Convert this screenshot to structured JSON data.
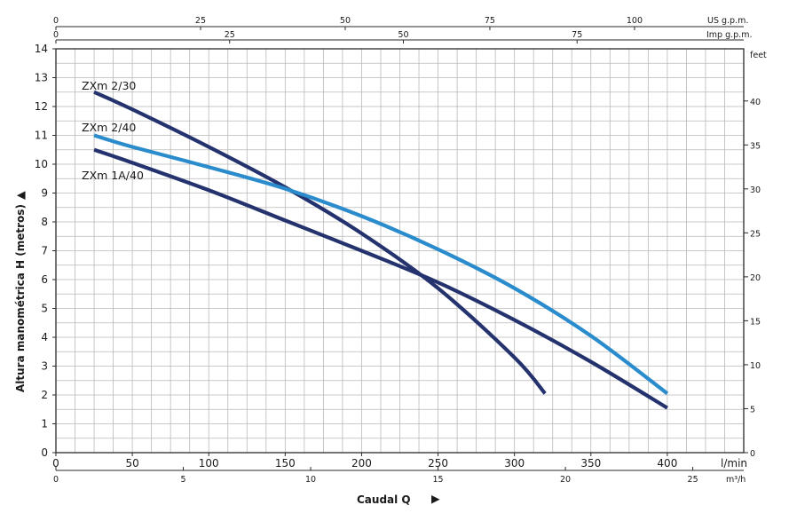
{
  "chart_data": {
    "type": "line",
    "xlabel": "Caudal Q",
    "ylabel": "Altura manométrica H (metros)",
    "xlim": [
      0,
      450
    ],
    "ylim": [
      0,
      14
    ],
    "x_unit": "l/min",
    "x_ticks": [
      0,
      50,
      100,
      150,
      200,
      250,
      300,
      350,
      400
    ],
    "y_ticks": [
      0,
      1,
      2,
      3,
      4,
      5,
      6,
      7,
      8,
      9,
      10,
      11,
      12,
      13,
      14
    ],
    "grid": true,
    "secondary_axes": {
      "bottom": {
        "unit": "m³/h",
        "ticks": [
          0,
          5,
          10,
          15,
          20,
          25
        ]
      },
      "top_us": {
        "unit": "US g.p.m.",
        "ticks": [
          0,
          25,
          50,
          75,
          100
        ]
      },
      "top_imp": {
        "unit": "Imp g.p.m.",
        "ticks": [
          0,
          25,
          50,
          75
        ]
      },
      "right": {
        "unit": "feet",
        "ticks": [
          0,
          5,
          10,
          15,
          20,
          25,
          30,
          35,
          40
        ]
      }
    },
    "series": [
      {
        "name": "ZXm 2/30",
        "color": "#24336e",
        "x": [
          25,
          50,
          100,
          150,
          200,
          250,
          300,
          320
        ],
        "y": [
          12.5,
          11.9,
          10.6,
          9.2,
          7.6,
          5.7,
          3.3,
          2.05
        ]
      },
      {
        "name": "ZXm 2/40",
        "color": "#2a8ccc",
        "x": [
          25,
          50,
          100,
          150,
          200,
          250,
          300,
          350,
          400
        ],
        "y": [
          11.0,
          10.6,
          9.9,
          9.15,
          8.2,
          7.05,
          5.7,
          4.05,
          2.05
        ]
      },
      {
        "name": "ZXm 1A/40",
        "color": "#24336e",
        "x": [
          25,
          50,
          100,
          150,
          200,
          250,
          300,
          350,
          400
        ],
        "y": [
          10.5,
          10.05,
          9.1,
          8.05,
          7.0,
          5.9,
          4.6,
          3.15,
          1.55
        ]
      }
    ]
  },
  "arrow_glyph": "▶",
  "up_arrow_glyph": "▲"
}
